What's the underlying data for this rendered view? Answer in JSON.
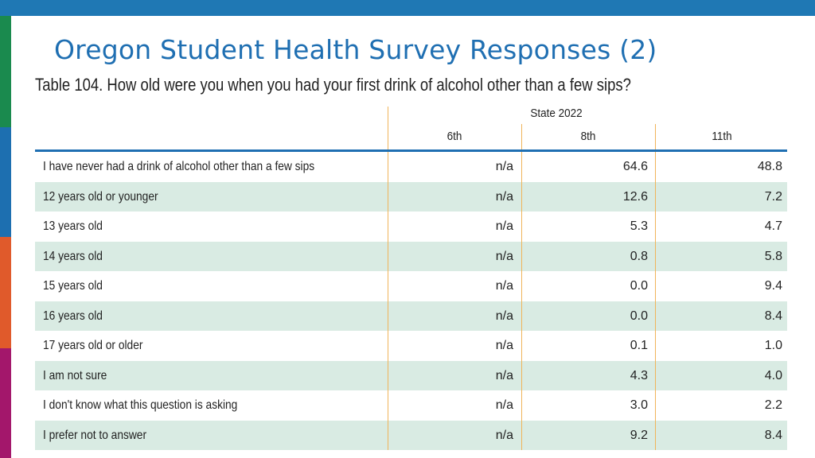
{
  "slide": {
    "title": "Oregon Student Health Survey Responses (2)",
    "caption": "Table 104. How old were you when you had your first drink of alcohol other than a few sips?"
  },
  "colors": {
    "top_bar": "#1f78b4",
    "title_text": "#1f6fb2",
    "row_shade": "#d9ebe3",
    "column_rule": "#f0b45a",
    "stripes": [
      "#1a8a4e",
      "#1d6fb0",
      "#e05a2b",
      "#a3176b"
    ]
  },
  "table": {
    "group_header": "State 2022",
    "columns": [
      "6th",
      "8th",
      "11th"
    ],
    "rows": [
      {
        "label": "I have never had a drink of alcohol other than a few sips",
        "values": [
          "n/a",
          "64.6",
          "48.8"
        ]
      },
      {
        "label": "12 years old or younger",
        "values": [
          "n/a",
          "12.6",
          "7.2"
        ]
      },
      {
        "label": "13 years old",
        "values": [
          "n/a",
          "5.3",
          "4.7"
        ]
      },
      {
        "label": "14 years old",
        "values": [
          "n/a",
          "0.8",
          "5.8"
        ]
      },
      {
        "label": "15 years old",
        "values": [
          "n/a",
          "0.0",
          "9.4"
        ]
      },
      {
        "label": "16 years old",
        "values": [
          "n/a",
          "0.0",
          "8.4"
        ]
      },
      {
        "label": "17 years old or older",
        "values": [
          "n/a",
          "0.1",
          "1.0"
        ]
      },
      {
        "label": "I am not sure",
        "values": [
          "n/a",
          "4.3",
          "4.0"
        ]
      },
      {
        "label": "I don't know what this question is asking",
        "values": [
          "n/a",
          "3.0",
          "2.2"
        ]
      },
      {
        "label": "I prefer not to answer",
        "values": [
          "n/a",
          "9.2",
          "8.4"
        ]
      }
    ]
  }
}
